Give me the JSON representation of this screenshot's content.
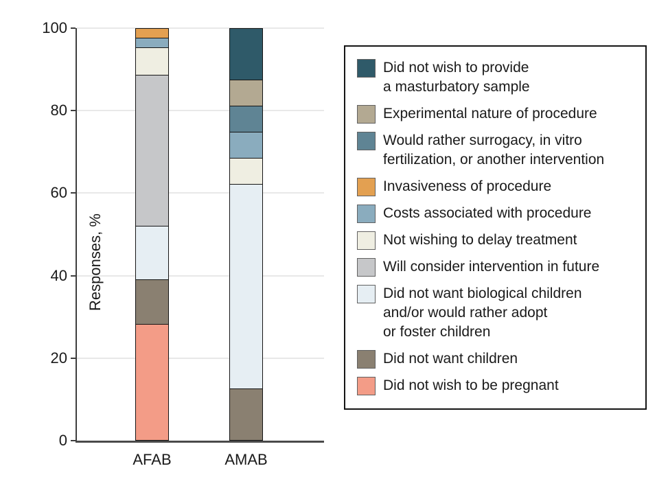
{
  "chart_data": {
    "type": "bar",
    "stacked": true,
    "title": "",
    "xlabel": "",
    "ylabel": "Responses, %",
    "ylim": [
      0,
      100
    ],
    "yticks": [
      0,
      20,
      40,
      60,
      80,
      100
    ],
    "grid": "horizontal-light",
    "legend_position": "right",
    "categories": [
      "AFAB",
      "AMAB"
    ],
    "series": [
      {
        "name": "Did not wish to provide a masturbatory sample",
        "legend_lines": [
          "Did not wish to provide",
          "a masturbatory sample"
        ],
        "color": "#2f5a69",
        "values": [
          0,
          12.5
        ]
      },
      {
        "name": "Experimental nature of procedure",
        "legend_lines": [
          "Experimental nature of procedure"
        ],
        "color": "#b3a992",
        "values": [
          0,
          6.25
        ]
      },
      {
        "name": "Would rather surrogacy, in vitro fertilization, or another intervention",
        "legend_lines": [
          "Would rather surrogacy, in vitro",
          "fertilization, or another intervention"
        ],
        "color": "#5f8494",
        "values": [
          0,
          6.25
        ]
      },
      {
        "name": "Invasiveness of procedure",
        "legend_lines": [
          "Invasiveness of procedure"
        ],
        "color": "#e3a051",
        "values": [
          2.2,
          0
        ]
      },
      {
        "name": "Costs associated with procedure",
        "legend_lines": [
          "Costs associated with procedure"
        ],
        "color": "#8aacbe",
        "values": [
          2.2,
          6.25
        ]
      },
      {
        "name": "Not wishing to delay treatment",
        "legend_lines": [
          "Not wishing to delay treatment"
        ],
        "color": "#efeee2",
        "values": [
          6.5,
          6.25
        ]
      },
      {
        "name": "Will consider intervention in future",
        "legend_lines": [
          "Will consider intervention in future"
        ],
        "color": "#c6c7c9",
        "values": [
          37,
          0
        ]
      },
      {
        "name": "Did not want biological children and/or would rather adopt or foster children",
        "legend_lines": [
          "Did not want biological children",
          "and/or would rather adopt",
          "or foster children"
        ],
        "color": "#e6eef3",
        "values": [
          13,
          50
        ]
      },
      {
        "name": "Did not want children",
        "legend_lines": [
          "Did not want children"
        ],
        "color": "#8a8071",
        "values": [
          10.9,
          12.5
        ]
      },
      {
        "name": "Did not wish to be pregnant",
        "legend_lines": [
          "Did not wish to be pregnant"
        ],
        "color": "#f39c87",
        "values": [
          28.3,
          0
        ]
      }
    ]
  },
  "colors": {
    "axis": "#3d3d3d",
    "grid": "#e8e8e8",
    "bar_border": "#141414",
    "legend_border": "#141414",
    "background": "#ffffff"
  }
}
